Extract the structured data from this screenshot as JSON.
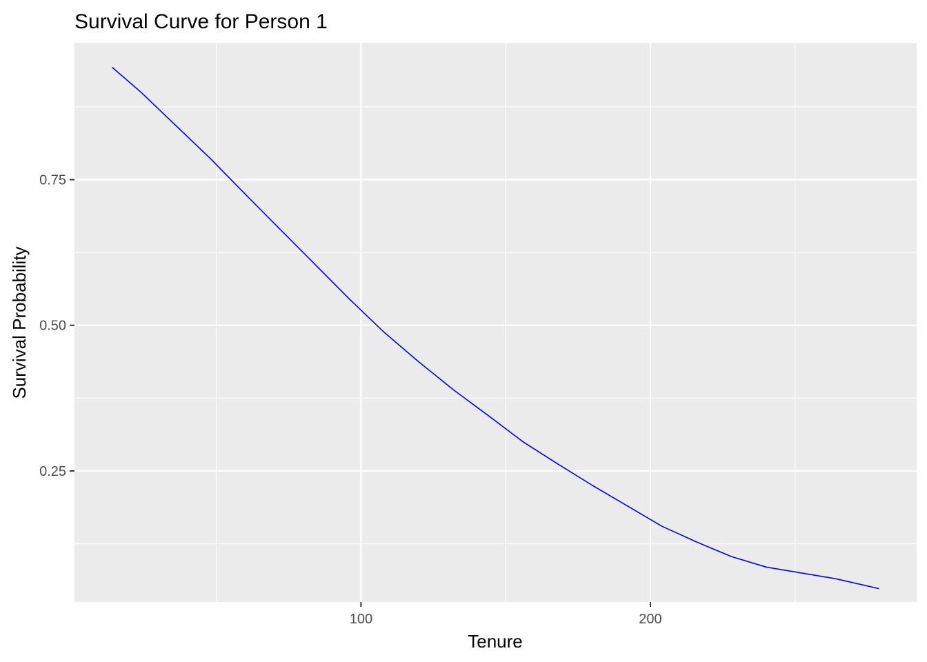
{
  "chart_data": {
    "type": "line",
    "title": "Survival Curve for Person 1",
    "xlabel": "Tenure",
    "ylabel": "Survival Probability",
    "xlim": [
      1,
      292
    ],
    "ylim": [
      0.025,
      0.985
    ],
    "x_ticks": [
      100,
      200
    ],
    "y_ticks": [
      0.25,
      0.5,
      0.75
    ],
    "x_minor_ticks": [
      50,
      150,
      250
    ],
    "y_minor_ticks": [
      0.125,
      0.375,
      0.625,
      0.875
    ],
    "grid": true,
    "panel_color": "#EBEBEB",
    "series": [
      {
        "color": "#0000FF",
        "x": [
          14,
          24,
          36,
          48,
          60,
          72,
          84,
          96,
          108,
          120,
          132,
          144,
          156,
          168,
          180,
          192,
          204,
          216,
          228,
          240,
          252,
          264,
          279
        ],
        "y": [
          0.943,
          0.9,
          0.843,
          0.786,
          0.725,
          0.665,
          0.605,
          0.545,
          0.488,
          0.437,
          0.389,
          0.345,
          0.3,
          0.262,
          0.225,
          0.19,
          0.155,
          0.128,
          0.103,
          0.085,
          0.075,
          0.065,
          0.048
        ]
      }
    ]
  }
}
